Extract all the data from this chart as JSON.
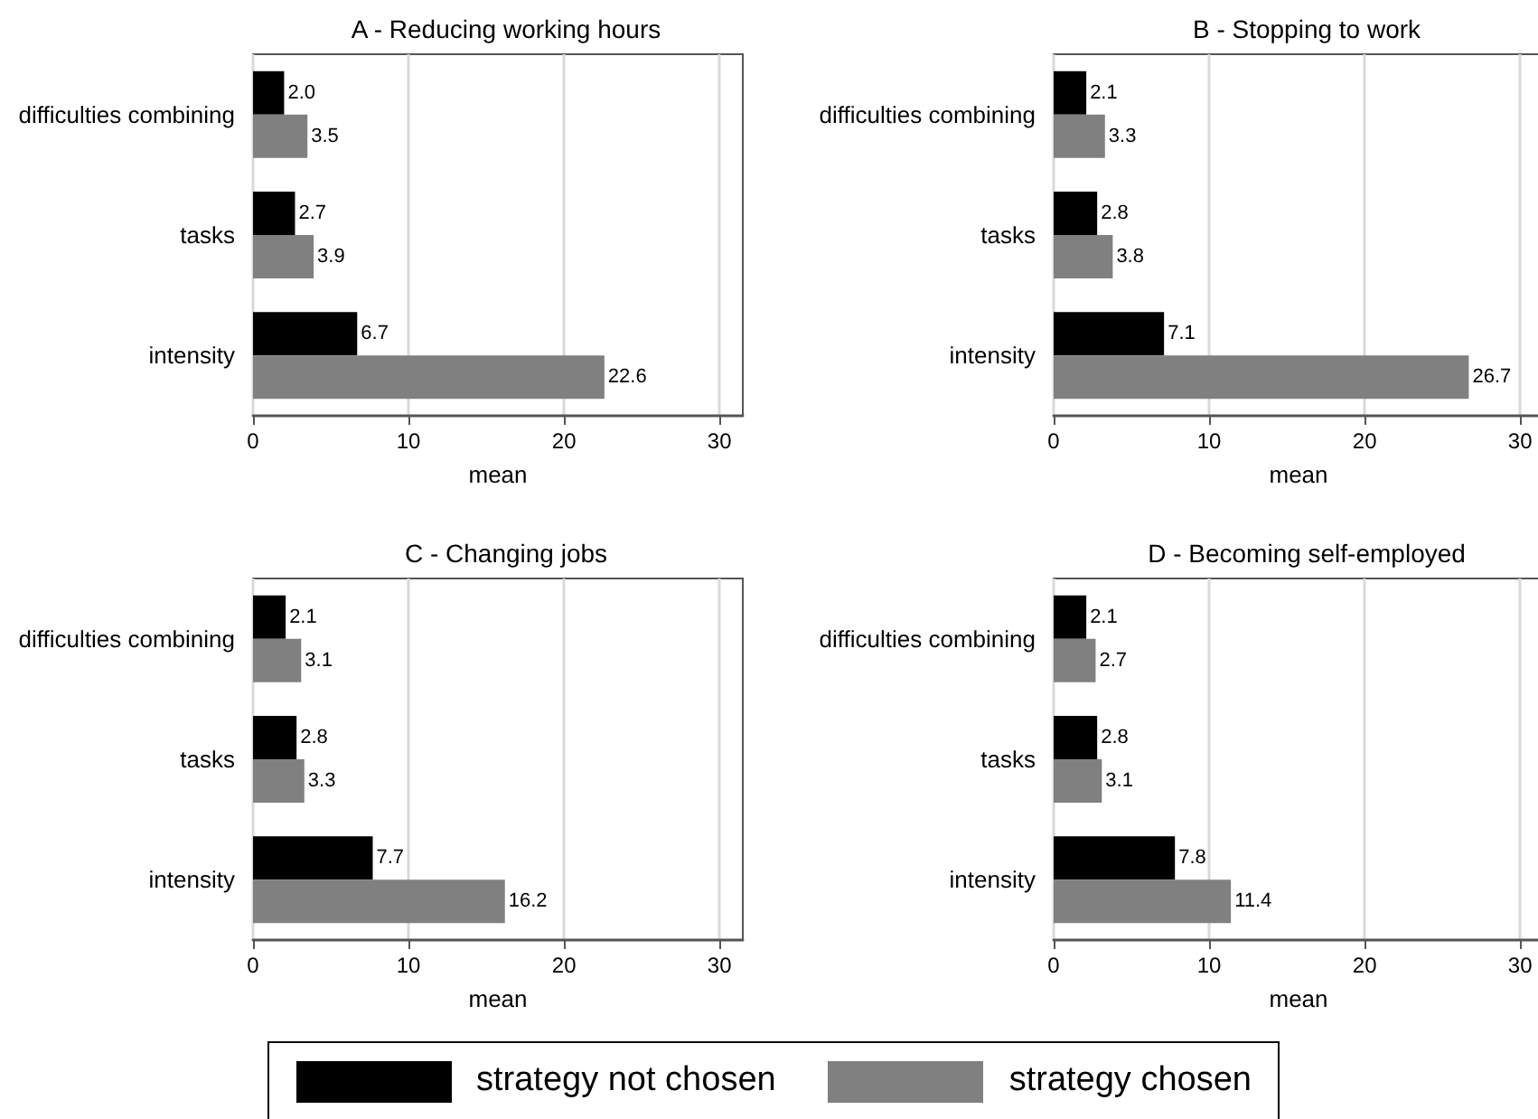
{
  "chart_data": [
    {
      "type": "bar",
      "orientation": "horizontal",
      "title": "A - Reducing working hours",
      "xlabel": "mean",
      "categories": [
        "difficulties combining",
        "tasks",
        "intensity"
      ],
      "series": [
        {
          "name": "strategy not chosen",
          "color": "#000000",
          "values": [
            2.0,
            2.7,
            6.7
          ],
          "value_labels": [
            "2.0",
            "2.7",
            "6.7"
          ]
        },
        {
          "name": "strategy chosen",
          "color": "#808080",
          "values": [
            3.5,
            3.9,
            22.6
          ],
          "value_labels": [
            "3.5",
            "3.9",
            "22.6"
          ]
        }
      ],
      "xlim": [
        0,
        31.5
      ],
      "xticks": [
        0,
        10,
        20,
        30
      ],
      "grid": "x",
      "legend": "bottom"
    },
    {
      "type": "bar",
      "orientation": "horizontal",
      "title": "B - Stopping to work",
      "xlabel": "mean",
      "categories": [
        "difficulties combining",
        "tasks",
        "intensity"
      ],
      "series": [
        {
          "color": "#000000",
          "values": [
            2.1,
            2.8,
            7.1
          ],
          "value_labels": [
            "2.1",
            "2.8",
            "7.1"
          ]
        },
        {
          "color": "#808080",
          "values": [
            3.3,
            3.8,
            26.7
          ],
          "value_labels": [
            "3.3",
            "3.8",
            "26.7"
          ]
        }
      ],
      "xlim": [
        0,
        31.5
      ],
      "xticks": [
        0,
        10,
        20,
        30
      ],
      "grid": "x"
    },
    {
      "type": "bar",
      "orientation": "horizontal",
      "title": "C - Changing jobs",
      "xlabel": "mean",
      "categories": [
        "difficulties combining",
        "tasks",
        "intensity"
      ],
      "series": [
        {
          "color": "#000000",
          "values": [
            2.1,
            2.8,
            7.7
          ],
          "value_labels": [
            "2.1",
            "2.8",
            "7.7"
          ]
        },
        {
          "color": "#808080",
          "values": [
            3.1,
            3.3,
            16.2
          ],
          "value_labels": [
            "3.1",
            "3.3",
            "16.2"
          ]
        }
      ],
      "xlim": [
        0,
        31.5
      ],
      "xticks": [
        0,
        10,
        20,
        30
      ],
      "grid": "x"
    },
    {
      "type": "bar",
      "orientation": "horizontal",
      "title": "D - Becoming self-employed",
      "xlabel": "mean",
      "categories": [
        "difficulties combining",
        "tasks",
        "intensity"
      ],
      "series": [
        {
          "color": "#000000",
          "values": [
            2.1,
            2.8,
            7.8
          ],
          "value_labels": [
            "2.1",
            "2.8",
            "7.8"
          ]
        },
        {
          "color": "#808080",
          "values": [
            2.7,
            3.1,
            11.4
          ],
          "value_labels": [
            "2.7",
            "3.1",
            "11.4"
          ]
        }
      ],
      "xlim": [
        0,
        31.5
      ],
      "xticks": [
        0,
        10,
        20,
        30
      ],
      "grid": "x"
    }
  ]
}
